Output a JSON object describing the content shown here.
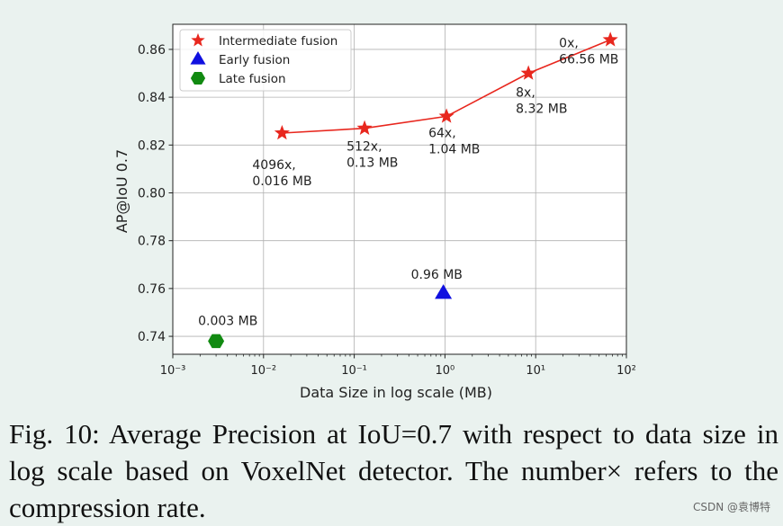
{
  "chart_data": {
    "type": "scatter",
    "xscale": "log",
    "xlabel": "Data Size in log scale (MB)",
    "ylabel": "AP@IoU 0.7",
    "xlim": [
      0.001,
      100
    ],
    "ylim": [
      0.7325,
      0.8705
    ],
    "x_ticks": [
      0.001,
      0.01,
      0.1,
      1,
      10,
      100
    ],
    "x_tick_labels": [
      "10⁻³",
      "10⁻²",
      "10⁻¹",
      "10⁰",
      "10¹",
      "10²"
    ],
    "y_ticks": [
      0.74,
      0.76,
      0.78,
      0.8,
      0.82,
      0.84,
      0.86
    ],
    "y_tick_labels": [
      "0.74",
      "0.76",
      "0.78",
      "0.80",
      "0.82",
      "0.84",
      "0.86"
    ],
    "grid": true,
    "legend_position": "top-left",
    "series": [
      {
        "name": "Intermediate fusion",
        "marker": "star",
        "color": "#e8271e",
        "line": true,
        "points": [
          {
            "x": 0.016,
            "y": 0.825,
            "label": [
              "4096x,",
              "0.016 MB"
            ]
          },
          {
            "x": 0.13,
            "y": 0.827,
            "label": [
              "512x,",
              "0.13 MB"
            ]
          },
          {
            "x": 1.04,
            "y": 0.832,
            "label": [
              "64x,",
              "1.04 MB"
            ]
          },
          {
            "x": 8.32,
            "y": 0.85,
            "label": [
              "8x,",
              "8.32 MB"
            ]
          },
          {
            "x": 66.56,
            "y": 0.864,
            "label": [
              "0x,",
              "66.56 MB"
            ]
          }
        ]
      },
      {
        "name": "Early fusion",
        "marker": "triangle",
        "color": "#1010e0",
        "line": false,
        "points": [
          {
            "x": 0.96,
            "y": 0.758,
            "label": [
              "0.96 MB"
            ]
          }
        ]
      },
      {
        "name": "Late fusion",
        "marker": "hexagon",
        "color": "#118a11",
        "line": false,
        "points": [
          {
            "x": 0.003,
            "y": 0.738,
            "label": [
              "0.003 MB"
            ]
          }
        ]
      }
    ]
  },
  "caption": "Fig. 10: Average Precision at IoU=0.7 with respect to data size in log scale based on VoxelNet detector. The number× refers to the compression rate.",
  "watermark": "CSDN @袁博特"
}
